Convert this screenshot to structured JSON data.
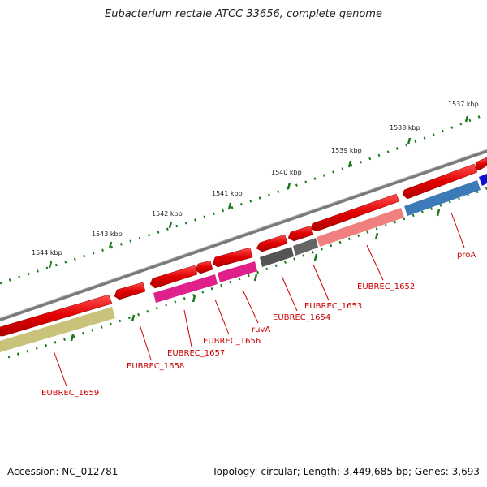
{
  "header": {
    "title": "Eubacterium rectale ATCC 33656, complete genome"
  },
  "footer": {
    "accession": "Accession: NC_012781",
    "stats": "Topology: circular; Length: 3,449,685 bp; Genes: 3,693"
  },
  "ticks": [
    {
      "label": "1537 kbp"
    },
    {
      "label": "1538 kbp"
    },
    {
      "label": "1539 kbp"
    },
    {
      "label": "1540 kbp"
    },
    {
      "label": "1541 kbp"
    },
    {
      "label": "1542 kbp"
    },
    {
      "label": "1543 kbp"
    },
    {
      "label": "1544 kbp"
    }
  ],
  "gene_labels": [
    {
      "name": "proA"
    },
    {
      "name": "EUBREC_1652"
    },
    {
      "name": "EUBREC_1653"
    },
    {
      "name": "EUBREC_1654"
    },
    {
      "name": "ruvA"
    },
    {
      "name": "EUBREC_1656"
    },
    {
      "name": "EUBREC_1657"
    },
    {
      "name": "EUBREC_1658"
    },
    {
      "name": "EUBREC_1659"
    }
  ],
  "colors": {
    "backbone": "#777777",
    "cds": "#e00000",
    "label": "#cc0000",
    "tick": "#1a7a1a",
    "feature_proA": "#3d7ab8",
    "feature_1652": "#f08080",
    "feature_1653_1654": "#555555",
    "feature_ruvA_1656_1657": "#e0208a",
    "feature_1659": "#c8c27a"
  }
}
